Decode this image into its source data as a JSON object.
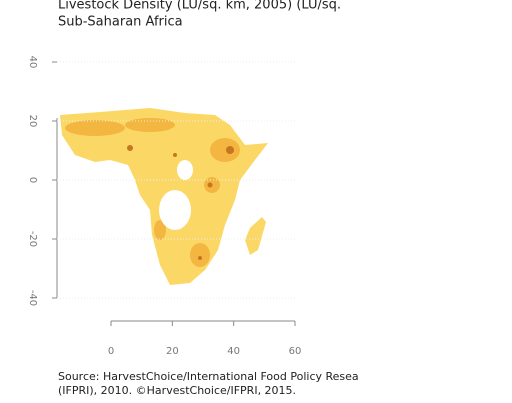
{
  "chart_data": {
    "type": "map",
    "title": "Livestock Density (LU/sq. km, 2005) (LU/sq.",
    "subtitle": "Sub-Saharan Africa",
    "xlim": [
      0,
      60
    ],
    "xticks": [
      0,
      20,
      40,
      60
    ],
    "ylim": [
      -40,
      40
    ],
    "yticks": [
      40,
      20,
      0,
      -20,
      -40
    ],
    "source": [
      "Source: HarvestChoice/International Food Policy Resea",
      "(IFPRI), 2010. ©HarvestChoice/IFPRI, 2015."
    ]
  }
}
